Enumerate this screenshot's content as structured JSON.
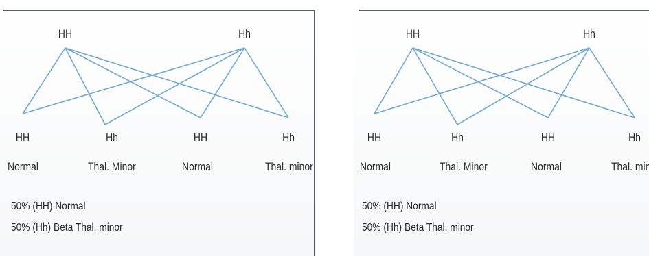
{
  "panels": [
    {
      "parents": [
        "HH",
        "Hh"
      ],
      "offspring": [
        {
          "genotype": "HH",
          "phenotype": "Normal"
        },
        {
          "genotype": "Hh",
          "phenotype": "Thal. Minor"
        },
        {
          "genotype": "HH",
          "phenotype": "Normal"
        },
        {
          "genotype": "Hh",
          "phenotype": "Thal. minor"
        }
      ],
      "summary": [
        "50% (HH) Normal",
        "50% (Hh) Beta Thal. minor"
      ]
    },
    {
      "parents": [
        "HH",
        "Hh"
      ],
      "offspring": [
        {
          "genotype": "HH",
          "phenotype": "Normal"
        },
        {
          "genotype": "Hh",
          "phenotype": "Thal. Minor"
        },
        {
          "genotype": "HH",
          "phenotype": "Normal"
        },
        {
          "genotype": "Hh",
          "phenotype": "Thal. minor"
        }
      ],
      "summary": [
        "50% (HH) Normal",
        "50% (Hh) Beta Thal. minor"
      ]
    }
  ],
  "colors": {
    "lines": "#6fa9cf",
    "rule": "#555a5e",
    "text": "#2b2b2b"
  }
}
